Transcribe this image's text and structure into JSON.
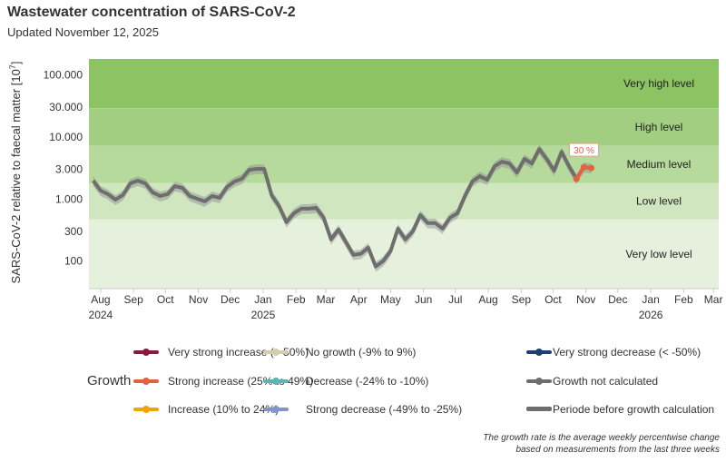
{
  "header": {
    "title": "Wastewater concentration of SARS-CoV-2",
    "subtitle": "Updated November 12, 2025"
  },
  "chart_data": {
    "type": "line",
    "title": "Wastewater concentration of SARS-CoV-2",
    "ylabel": "SARS-CoV-2 relative to faecal matter [10^7]",
    "ylabel_main": "SARS-CoV-2 relative to faecal matter [10",
    "ylabel_sup": "7",
    "ylabel_end": "]",
    "yscale": "log",
    "ylim": [
      36,
      180000
    ],
    "y_ticks": [
      {
        "value": 100000,
        "label": "100.000"
      },
      {
        "value": 30000,
        "label": "30.000"
      },
      {
        "value": 10000,
        "label": "10.000"
      },
      {
        "value": 3000,
        "label": "3.000"
      },
      {
        "value": 1000,
        "label": "1.000"
      },
      {
        "value": 300,
        "label": "300"
      },
      {
        "value": 100,
        "label": "100"
      }
    ],
    "xlim": [
      "2024-07-21",
      "2026-03-06"
    ],
    "x_ticks": [
      {
        "date": "2024-08-01",
        "label": "Aug",
        "year": "2024"
      },
      {
        "date": "2024-09-01",
        "label": "Sep"
      },
      {
        "date": "2024-10-01",
        "label": "Oct"
      },
      {
        "date": "2024-11-01",
        "label": "Nov"
      },
      {
        "date": "2024-12-01",
        "label": "Dec"
      },
      {
        "date": "2025-01-01",
        "label": "Jan",
        "year": "2025"
      },
      {
        "date": "2025-02-01",
        "label": "Feb"
      },
      {
        "date": "2025-03-01",
        "label": "Mar"
      },
      {
        "date": "2025-04-01",
        "label": "Apr"
      },
      {
        "date": "2025-05-01",
        "label": "May"
      },
      {
        "date": "2025-06-01",
        "label": "Jun"
      },
      {
        "date": "2025-07-01",
        "label": "Jul"
      },
      {
        "date": "2025-08-01",
        "label": "Aug"
      },
      {
        "date": "2025-09-01",
        "label": "Sep"
      },
      {
        "date": "2025-10-01",
        "label": "Oct"
      },
      {
        "date": "2025-11-01",
        "label": "Nov"
      },
      {
        "date": "2025-12-01",
        "label": "Dec"
      },
      {
        "date": "2026-01-01",
        "label": "Jan",
        "year": "2026"
      },
      {
        "date": "2026-02-01",
        "label": "Feb"
      },
      {
        "date": "2026-03-01",
        "label": "Mar"
      }
    ],
    "bands": [
      {
        "label": "Very high level",
        "from": 29000,
        "to": 180000,
        "color": "#8cc464"
      },
      {
        "label": "High level",
        "from": 7200,
        "to": 29000,
        "color": "#a1ce80"
      },
      {
        "label": "Medium level",
        "from": 1800,
        "to": 7200,
        "color": "#b6da9c"
      },
      {
        "label": "Low level",
        "from": 470,
        "to": 1800,
        "color": "#d0e6bf"
      },
      {
        "label": "Very low level",
        "from": 36,
        "to": 470,
        "color": "#e6f1dd"
      }
    ],
    "x_start": "2024-07-25",
    "x_step_days": 7,
    "values": [
      1970,
      1366,
      1194,
      977,
      1155,
      1786,
      1970,
      1786,
      1277,
      1117,
      1194,
      1615,
      1510,
      1117,
      1010,
      914,
      1117,
      1045,
      1563,
      1910,
      2113,
      2951,
      3054,
      3054,
      1155,
      773,
      423,
      590,
      699,
      699,
      722,
      500,
      223,
      323,
      202,
      126,
      131,
      165,
      82,
      100,
      145,
      334,
      223,
      302,
      553,
      409,
      409,
      334,
      500,
      590,
      1117,
      1910,
      2335,
      2042,
      3376,
      3992,
      3733,
      2670,
      4416,
      3733,
      6383,
      4416,
      2856,
      5770,
      3376,
      2113,
      3266,
      3160
    ],
    "uncertainty_pct": 18,
    "growth_segment": {
      "from_index": 65,
      "to_index": 67,
      "category": "Strong increase (25% to 49%)",
      "color": "#e4603f",
      "label": "30 %"
    },
    "line_color": "#6e6e6e",
    "band_color": "#8c8c8c"
  },
  "legend": {
    "title": "Growth",
    "items": [
      {
        "label": "Very strong increase (> 50%)",
        "color": "#8b1a3f",
        "dot": true
      },
      {
        "label": "Strong increase (25% to 49%)",
        "color": "#e4603f",
        "dot": true
      },
      {
        "label": "Increase (10% to 24%)",
        "color": "#f0a30a",
        "dot": true
      },
      {
        "label": "No growth (-9% to 9%)",
        "color": "#d8ccae",
        "dot": true
      },
      {
        "label": "Decrease (-24% to -10%)",
        "color": "#5fb5ad",
        "dot": true
      },
      {
        "label": "Strong decrease (-49% to -25%)",
        "color": "#7f95cc",
        "dot": true
      },
      {
        "label": "Very strong decrease (< -50%)",
        "color": "#1f3f73",
        "dot": true
      },
      {
        "label": "Growth not calculated",
        "color": "#6e6e6e",
        "dot": true
      },
      {
        "label": "Periode before growth calculation",
        "color": "#6e6e6e",
        "dot": false
      }
    ]
  },
  "footnote": {
    "line1": "The growth rate is the average weekly percentwise change",
    "line2": "based on measurements from the last three weeks"
  }
}
